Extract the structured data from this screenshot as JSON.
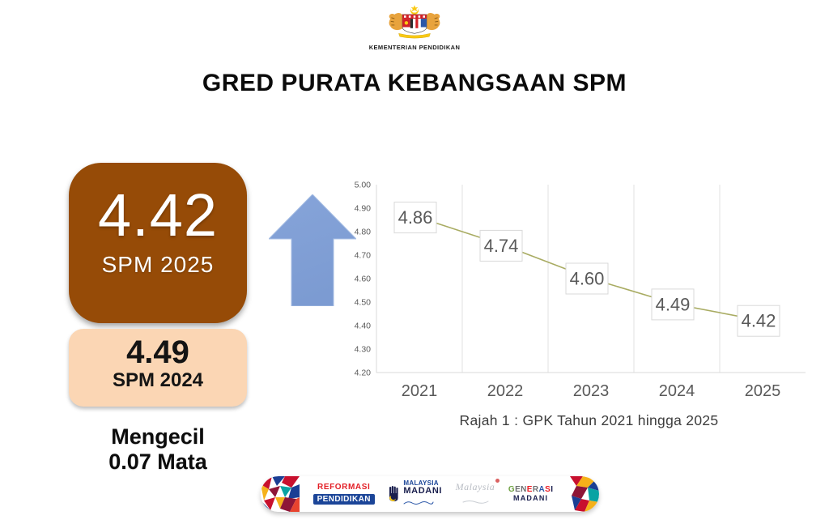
{
  "header": {
    "ministry": "KEMENTERIAN PENDIDIKAN",
    "title": "GRED PURATA KEBANGSAAN SPM"
  },
  "highlight": {
    "current": {
      "value": "4.42",
      "label": "SPM 2025"
    },
    "previous": {
      "value": "4.49",
      "label": "SPM 2024"
    },
    "change_line1": "Mengecil",
    "change_line2": "0.07 Mata"
  },
  "chart_data": {
    "type": "line",
    "categories": [
      "2021",
      "2022",
      "2023",
      "2024",
      "2025"
    ],
    "values": [
      4.86,
      4.74,
      4.6,
      4.49,
      4.42
    ],
    "labels": [
      "4.86",
      "4.74",
      "4.60",
      "4.49",
      "4.42"
    ],
    "title": "",
    "xlabel": "",
    "ylabel": "",
    "ylim": [
      4.2,
      5.0
    ],
    "ytick_step": 0.1,
    "yticks": [
      "5.00",
      "4.90",
      "4.80",
      "4.70",
      "4.60",
      "4.50",
      "4.40",
      "4.30",
      "4.20"
    ],
    "grid": "vertical-only",
    "legend": "none",
    "line_color": "#A9AC63",
    "grid_color": "#E2E2E2",
    "axis_color": "#D9D9D9",
    "tick_text_color": "#595959",
    "label_box_border": "#D9D9D9",
    "label_text_color": "#595959",
    "caption": "Rajah 1 : GPK Tahun 2021 hingga 2025"
  },
  "arrow": {
    "direction": "up",
    "color_top": "#86A4D9",
    "color_bottom": "#6F90C9"
  },
  "cards": {
    "current_bg": "#964B07",
    "previous_bg": "#FBD6B4"
  },
  "footer": {
    "logos": {
      "reformasi": {
        "line1": "REFORMASI",
        "line2": "PENDIDIKAN"
      },
      "malaysia_madani": {
        "line1": "MALAYSIA",
        "line2": "MADANI"
      },
      "anniversary": {
        "text": "Malaysia"
      },
      "generasi": {
        "line1": "GENERASI",
        "line2": "MADANI",
        "letter_colors": [
          "#6FA243",
          "#6D6E71",
          "#6D6E71",
          "#ED1C24",
          "#6D6E71",
          "#2B57A8",
          "#ED1C24",
          "#1A1F4E"
        ]
      }
    }
  }
}
